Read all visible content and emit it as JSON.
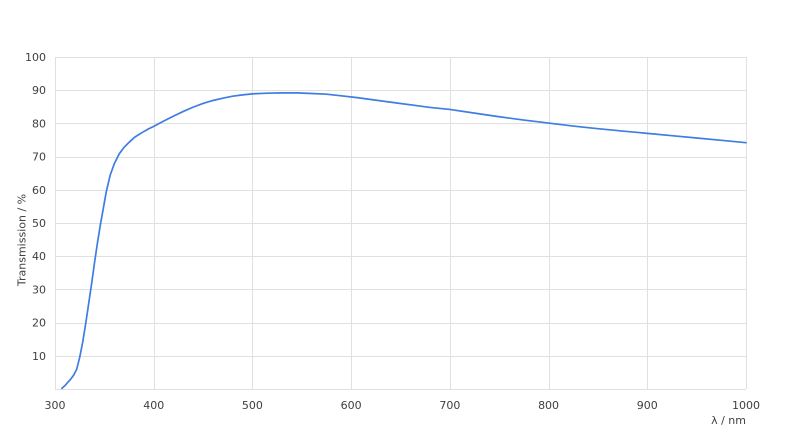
{
  "chart_data": {
    "type": "line",
    "title": "",
    "xlabel": "λ / nm",
    "ylabel": "Transmission / %",
    "xlim": [
      300,
      1000
    ],
    "ylim": [
      0,
      100
    ],
    "x_ticks": [
      300,
      400,
      500,
      600,
      700,
      800,
      900,
      1000
    ],
    "y_ticks": [
      10,
      20,
      30,
      40,
      50,
      60,
      70,
      80,
      90,
      100
    ],
    "grid": true,
    "legend": "none",
    "series": [
      {
        "name": "transmission",
        "color": "#3e7de1",
        "points": [
          [
            307,
            0.2
          ],
          [
            310,
            1
          ],
          [
            313,
            2
          ],
          [
            316,
            3
          ],
          [
            319,
            4.2
          ],
          [
            322,
            6
          ],
          [
            325,
            9.5
          ],
          [
            328,
            14
          ],
          [
            331,
            19.5
          ],
          [
            334,
            25.5
          ],
          [
            337,
            31.5
          ],
          [
            340,
            38
          ],
          [
            343,
            44
          ],
          [
            346,
            49.5
          ],
          [
            349,
            54.5
          ],
          [
            352,
            59.5
          ],
          [
            356,
            64.5
          ],
          [
            360,
            67.8
          ],
          [
            365,
            70.8
          ],
          [
            370,
            72.8
          ],
          [
            375,
            74.3
          ],
          [
            381,
            75.9
          ],
          [
            388,
            77.2
          ],
          [
            395,
            78.4
          ],
          [
            400,
            79.1
          ],
          [
            410,
            80.7
          ],
          [
            420,
            82.2
          ],
          [
            430,
            83.6
          ],
          [
            440,
            84.9
          ],
          [
            450,
            86
          ],
          [
            460,
            86.9
          ],
          [
            470,
            87.6
          ],
          [
            480,
            88.2
          ],
          [
            490,
            88.6
          ],
          [
            500,
            88.9
          ],
          [
            515,
            89.1
          ],
          [
            530,
            89.2
          ],
          [
            545,
            89.2
          ],
          [
            560,
            89
          ],
          [
            575,
            88.8
          ],
          [
            590,
            88.3
          ],
          [
            605,
            87.8
          ],
          [
            620,
            87.2
          ],
          [
            635,
            86.6
          ],
          [
            650,
            86
          ],
          [
            665,
            85.4
          ],
          [
            680,
            84.8
          ],
          [
            700,
            84.2
          ],
          [
            725,
            83.1
          ],
          [
            750,
            82
          ],
          [
            775,
            81
          ],
          [
            800,
            80.1
          ],
          [
            825,
            79.2
          ],
          [
            850,
            78.4
          ],
          [
            875,
            77.7
          ],
          [
            900,
            77
          ],
          [
            925,
            76.3
          ],
          [
            950,
            75.6
          ],
          [
            975,
            74.9
          ],
          [
            1000,
            74.2
          ]
        ]
      }
    ]
  },
  "colors": {
    "background": "#ffffff",
    "grid": "#e0e0e0",
    "axis_text": "#404040",
    "line": "#3e7de1"
  }
}
